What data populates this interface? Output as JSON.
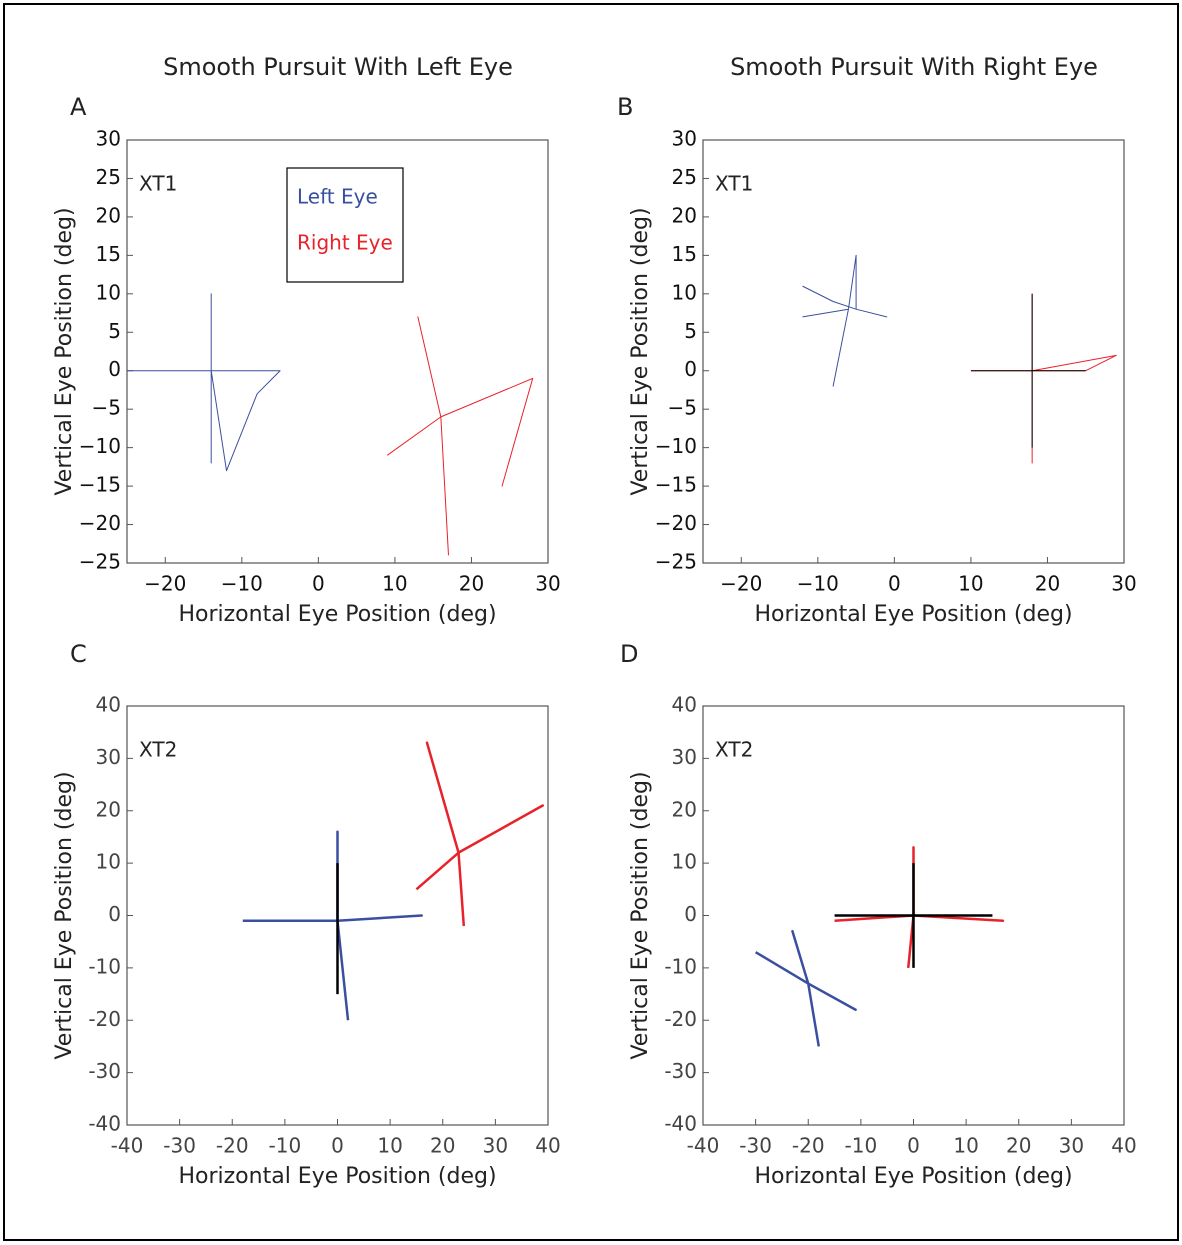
{
  "column_titles": [
    "Smooth Pursuit With Left Eye",
    "Smooth Pursuit With Right Eye"
  ],
  "chart_data": [
    {
      "type": "line",
      "panel": "A",
      "annotation": "XT1",
      "xlabel": "Horizontal Eye Position (deg)",
      "ylabel": "Vertical Eye Position (deg)",
      "xlim": [
        -25,
        30
      ],
      "xticks": [
        {
          "value": -20,
          "label": "−20"
        },
        {
          "value": -10,
          "label": "−10"
        },
        0,
        10,
        20,
        30
      ],
      "ylim": [
        -25,
        30
      ],
      "yticks": [
        {
          "value": -25,
          "label": "−25"
        },
        {
          "value": -20,
          "label": "−20"
        },
        {
          "value": -15,
          "label": "−15"
        },
        {
          "value": -10,
          "label": "−10"
        },
        {
          "value": -5,
          "label": "−5"
        },
        0,
        5,
        10,
        15,
        20,
        25,
        30
      ],
      "legend": "upper center",
      "line_width": 1,
      "series": [
        {
          "name": "Left Eye",
          "color": "#3a4fa0",
          "x": [
            -25,
            -14,
            -14,
            -14,
            -14,
            -5,
            -8,
            -12,
            -14
          ],
          "values": [
            0,
            0,
            10,
            -12,
            0,
            0,
            -3,
            -13,
            0
          ]
        },
        {
          "name": "Right Eye",
          "color": "#e8222a",
          "x": [
            9,
            16,
            28,
            24,
            28,
            16,
            13,
            16,
            17
          ],
          "values": [
            -11,
            -6,
            -1,
            -15,
            -1,
            -6,
            7,
            -6,
            -24
          ]
        }
      ]
    },
    {
      "type": "line",
      "panel": "B",
      "annotation": "XT1",
      "xlabel": "Horizontal Eye Position (deg)",
      "ylabel": "Vertical Eye Position (deg)",
      "xlim": [
        -25,
        30
      ],
      "xticks": [
        {
          "value": -20,
          "label": "−20"
        },
        {
          "value": -10,
          "label": "−10"
        },
        0,
        10,
        20,
        30
      ],
      "ylim": [
        -25,
        30
      ],
      "yticks": [
        {
          "value": -25,
          "label": "−25"
        },
        {
          "value": -20,
          "label": "−20"
        },
        {
          "value": -15,
          "label": "−15"
        },
        {
          "value": -10,
          "label": "−10"
        },
        {
          "value": -5,
          "label": "−5"
        },
        0,
        5,
        10,
        15,
        20,
        25,
        30
      ],
      "line_width": 1,
      "series": [
        {
          "color": "#3a4fa0",
          "x": [
            -12,
            -8,
            -5,
            -1,
            -5,
            -5,
            -6,
            -8,
            -6,
            -12
          ],
          "values": [
            11,
            9,
            8,
            7,
            8,
            15,
            8,
            -2,
            8,
            7
          ]
        },
        {
          "color": "#e8222a",
          "x": [
            10,
            18,
            18,
            18,
            18,
            25,
            29,
            18
          ],
          "values": [
            0,
            0,
            10,
            -12,
            0,
            0,
            2,
            0
          ]
        },
        {
          "color": "#000000",
          "x": [
            10,
            25
          ],
          "values": [
            0,
            0
          ]
        },
        {
          "color": "#000000",
          "x": [
            18,
            18
          ],
          "values": [
            -10,
            10
          ]
        }
      ]
    },
    {
      "type": "line",
      "panel": "C",
      "annotation": "XT2",
      "xlabel": "Horizontal Eye Position (deg)",
      "ylabel": "Vertical Eye Position (deg)",
      "xlim": [
        -40,
        40
      ],
      "xticks": [
        -40,
        -30,
        -20,
        -10,
        0,
        10,
        20,
        30,
        40
      ],
      "ylim": [
        -40,
        40
      ],
      "yticks": [
        -40,
        -30,
        -20,
        -10,
        0,
        10,
        20,
        30,
        40
      ],
      "line_width": 2.5,
      "series": [
        {
          "color": "#3a4fa0",
          "x": [
            -18,
            0,
            16,
            0,
            0,
            0,
            2
          ],
          "values": [
            -1,
            -1,
            0,
            -1,
            16,
            -1,
            -20
          ]
        },
        {
          "color": "#e8222a",
          "x": [
            15,
            23,
            39,
            23,
            17,
            23,
            24
          ],
          "values": [
            5,
            12,
            21,
            12,
            33,
            12,
            -2
          ]
        },
        {
          "color": "#000000",
          "x": [
            0,
            0
          ],
          "values": [
            -15,
            10
          ]
        }
      ]
    },
    {
      "type": "line",
      "panel": "D",
      "annotation": "XT2",
      "xlabel": "Horizontal Eye Position (deg)",
      "ylabel": "Vertical Eye Position (deg)",
      "xlim": [
        -40,
        40
      ],
      "xticks": [
        -40,
        -30,
        -20,
        -10,
        0,
        10,
        20,
        30,
        40
      ],
      "ylim": [
        -40,
        40
      ],
      "yticks": [
        -40,
        -30,
        -20,
        -10,
        0,
        10,
        20,
        30,
        40
      ],
      "line_width": 2.5,
      "series": [
        {
          "color": "#3a4fa0",
          "x": [
            -30,
            -20,
            -11,
            -20,
            -23,
            -20,
            -18
          ],
          "values": [
            -7,
            -13,
            -18,
            -13,
            -3,
            -13,
            -25
          ]
        },
        {
          "color": "#e8222a",
          "x": [
            -15,
            0,
            17,
            0,
            0,
            0,
            -1
          ],
          "values": [
            -1,
            0,
            -1,
            0,
            13,
            0,
            -10
          ]
        },
        {
          "color": "#000000",
          "x": [
            -15,
            15
          ],
          "values": [
            0,
            0
          ]
        },
        {
          "color": "#000000",
          "x": [
            0,
            0
          ],
          "values": [
            -10,
            10
          ]
        }
      ]
    }
  ]
}
